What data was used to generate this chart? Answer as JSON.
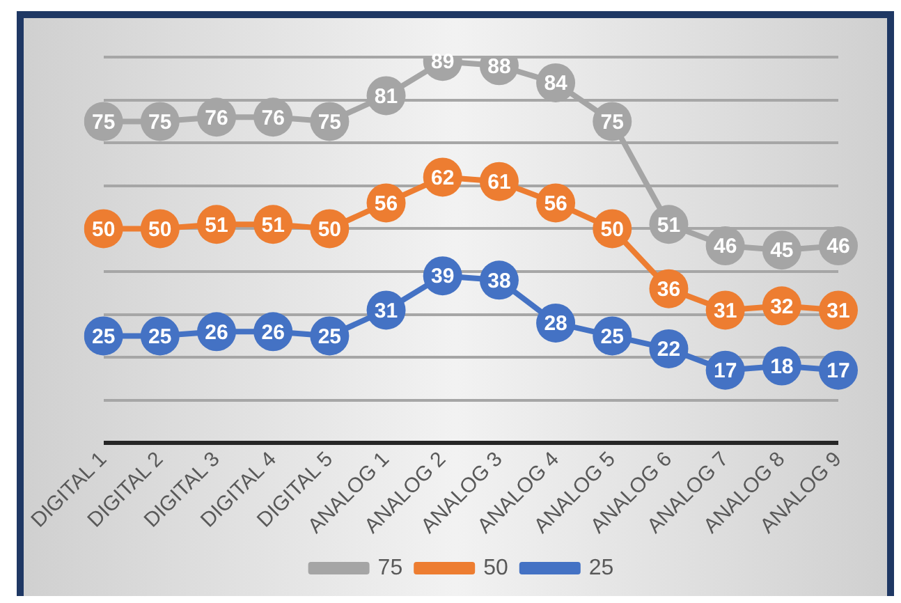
{
  "chart_data": {
    "type": "line",
    "categories": [
      "DIGITAL 1",
      "DIGITAL 2",
      "DIGITAL 3",
      "DIGITAL 4",
      "DIGITAL 5",
      "ANALOG 1",
      "ANALOG 2",
      "ANALOG 3",
      "ANALOG 4",
      "ANALOG 5",
      "ANALOG 6",
      "ANALOG 7",
      "ANALOG 8",
      "ANALOG 9"
    ],
    "series": [
      {
        "name": "75",
        "color": "#a5a5a5",
        "values": [
          75,
          75,
          76,
          76,
          75,
          81,
          89,
          88,
          84,
          75,
          51,
          46,
          45,
          46
        ]
      },
      {
        "name": "50",
        "color": "#ed7d31",
        "values": [
          50,
          50,
          51,
          51,
          50,
          56,
          62,
          61,
          56,
          50,
          36,
          31,
          32,
          31
        ]
      },
      {
        "name": "25",
        "color": "#4472c4",
        "values": [
          25,
          25,
          26,
          26,
          25,
          31,
          39,
          38,
          28,
          25,
          22,
          17,
          18,
          17
        ]
      }
    ],
    "ylim": [
      0,
      90
    ],
    "yticks": [
      {
        "value": 0,
        "label": null
      },
      {
        "value": 10,
        "label": null
      },
      {
        "value": 20,
        "label": null
      },
      {
        "value": 30,
        "label": null
      },
      {
        "value": 40,
        "label": null
      },
      {
        "value": 50,
        "label": null
      },
      {
        "value": 60,
        "label": null
      },
      {
        "value": 70,
        "label": null
      },
      {
        "value": 80,
        "label": null
      },
      {
        "value": 90,
        "label": null
      }
    ],
    "tick_labels": "x",
    "grid": "y",
    "legend": "bottom",
    "marker": "circle",
    "line_style": "solid",
    "data_labels": true
  }
}
